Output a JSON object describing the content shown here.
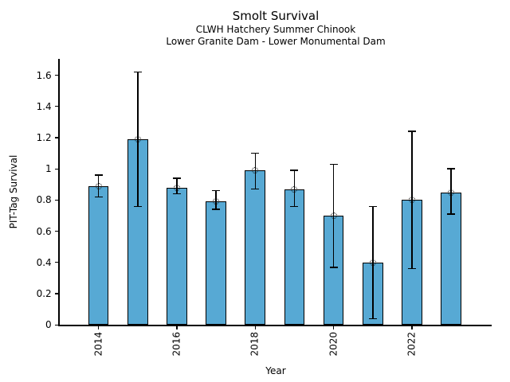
{
  "chart_data": {
    "type": "bar",
    "title": "Smolt Survival",
    "subtitle_line1": "CLWH Hatchery Summer Chinook",
    "subtitle_line2": "Lower Granite Dam - Lower Monumental Dam",
    "xlabel": "Year",
    "ylabel": "PIT-Tag Survival",
    "categories": [
      "2014",
      "2015",
      "2016",
      "2017",
      "2018",
      "2019",
      "2020",
      "2021",
      "2022",
      "2023"
    ],
    "values": [
      0.89,
      1.19,
      0.88,
      0.79,
      0.99,
      0.87,
      0.7,
      0.4,
      0.8,
      0.85
    ],
    "error_low": [
      0.82,
      0.76,
      0.84,
      0.74,
      0.87,
      0.76,
      0.37,
      0.04,
      0.36,
      0.71
    ],
    "error_high": [
      0.96,
      1.62,
      0.94,
      0.86,
      1.1,
      0.99,
      1.03,
      0.76,
      1.24,
      1.0
    ],
    "x_tick_labels": [
      "2014",
      "2016",
      "2018",
      "2020",
      "2022"
    ],
    "y_tick_labels": [
      "0",
      "0.2",
      "0.4",
      "0.6",
      "0.8",
      "1",
      "1.2",
      "1.4",
      "1.6"
    ],
    "y_tick_values": [
      0,
      0.2,
      0.4,
      0.6,
      0.8,
      1.0,
      1.2,
      1.4,
      1.6
    ],
    "ylim": [
      0,
      1.705
    ],
    "grid": false,
    "legend_position": "none",
    "bar_color": "#57a9d4",
    "bar_edge_color": "#000000",
    "error_color": "#000000",
    "marker": "open-circle-dotted"
  }
}
